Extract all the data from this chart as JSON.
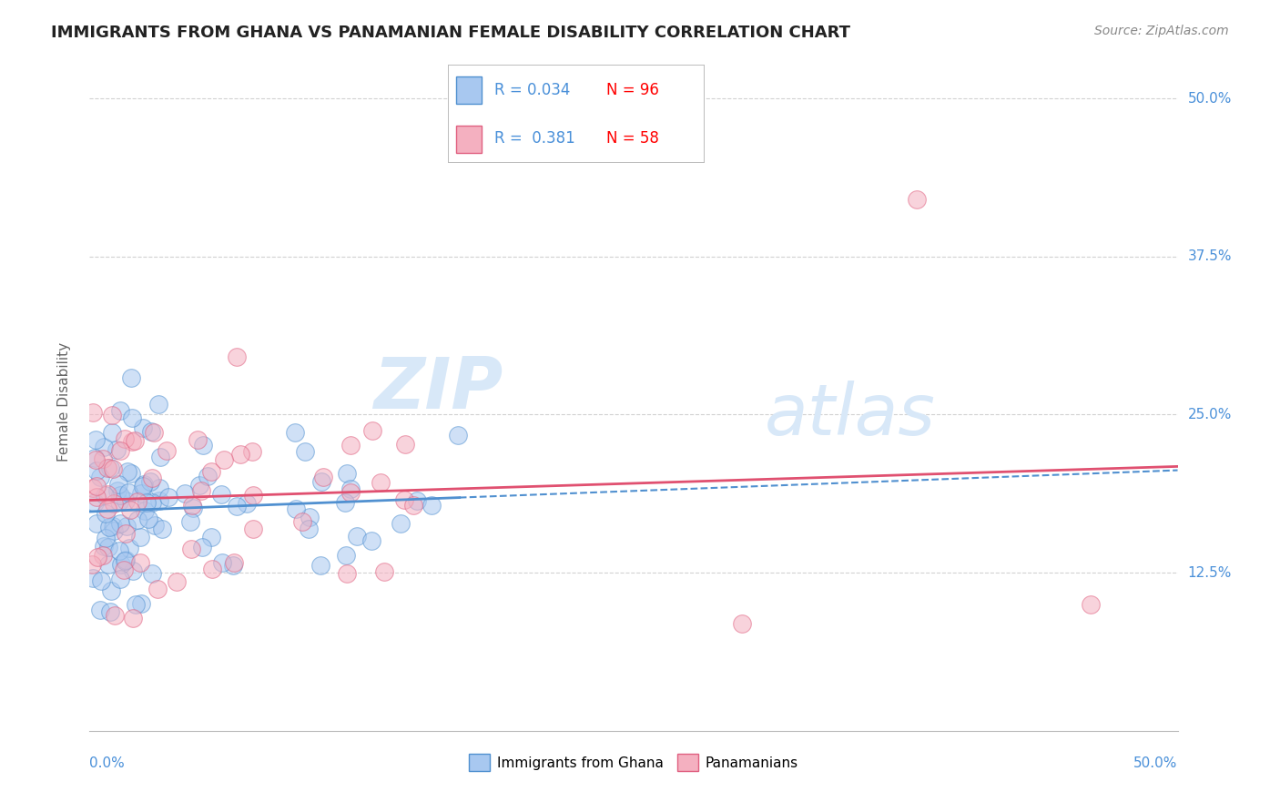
{
  "title": "IMMIGRANTS FROM GHANA VS PANAMANIAN FEMALE DISABILITY CORRELATION CHART",
  "source": "Source: ZipAtlas.com",
  "ylabel": "Female Disability",
  "legend_entries": [
    "Immigrants from Ghana",
    "Panamanians"
  ],
  "r_ghana": 0.034,
  "n_ghana": 96,
  "r_panama": 0.381,
  "n_panama": 58,
  "xlim": [
    0.0,
    0.5
  ],
  "ylim": [
    0.0,
    0.52
  ],
  "yticks": [
    0.125,
    0.25,
    0.375,
    0.5
  ],
  "ytick_labels": [
    "12.5%",
    "25.0%",
    "37.5%",
    "50.0%"
  ],
  "background_color": "#ffffff",
  "grid_color": "#cccccc",
  "blue_fill": "#a8c8f0",
  "pink_fill": "#f4b0c0",
  "blue_edge": "#5090d0",
  "pink_edge": "#e06080",
  "blue_line": "#5090d0",
  "pink_line": "#e05070",
  "title_color": "#222222",
  "tick_color": "#4a90d9",
  "watermark_color": "#d8e8f8",
  "legend_text_color": "#4a90d9"
}
